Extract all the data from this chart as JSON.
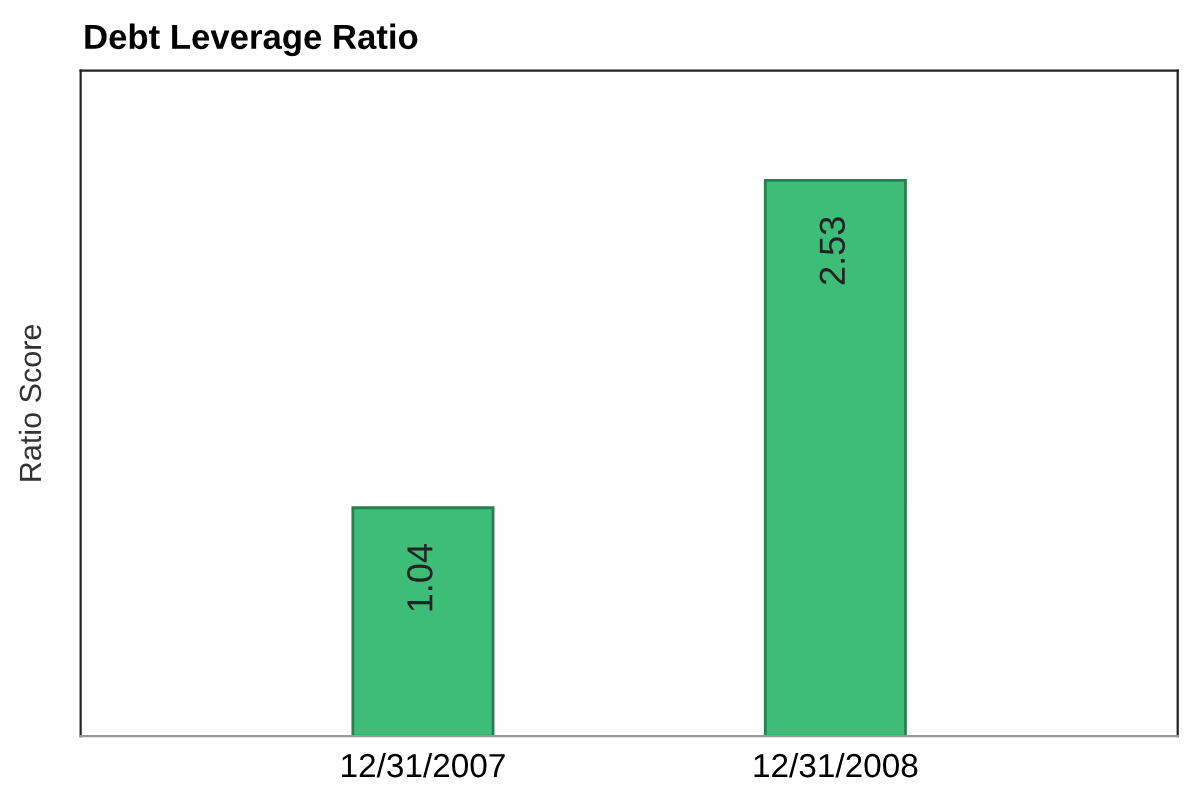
{
  "chart_data": {
    "type": "bar",
    "title": "Debt Leverage Ratio",
    "ylabel": "Ratio Score",
    "categories": [
      "12/31/2007",
      "12/31/2008"
    ],
    "values": [
      1.04,
      2.53
    ],
    "color": "#3dbd78",
    "ylim": [
      0,
      3.03
    ],
    "tick_labels": "x",
    "data_labels": true,
    "grid": false,
    "legend": false
  }
}
